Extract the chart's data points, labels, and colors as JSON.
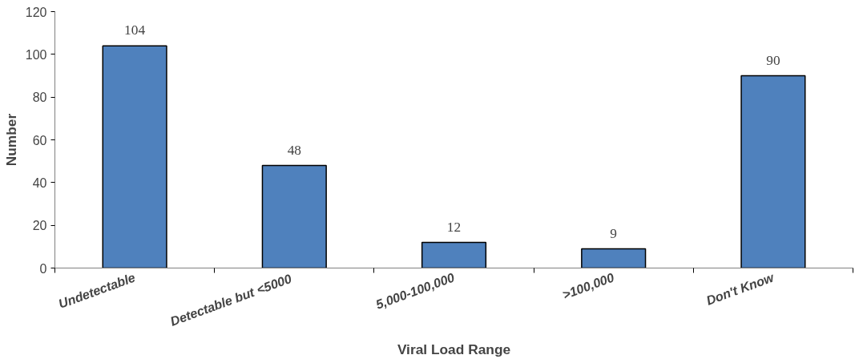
{
  "chart_data": {
    "type": "bar",
    "xlabel": "Viral Load Range",
    "ylabel": "Number",
    "categories": [
      "Undetectable",
      "Detectable  but <5000",
      "5,000-100,000",
      ">100,000",
      "Don't Know"
    ],
    "values": [
      104,
      48,
      12,
      9,
      90
    ],
    "color": "#4f81bd",
    "ylim": [
      0,
      120
    ],
    "yticks": [
      0,
      20,
      40,
      60,
      80,
      100,
      120
    ],
    "grid": false,
    "data_labels": true
  }
}
